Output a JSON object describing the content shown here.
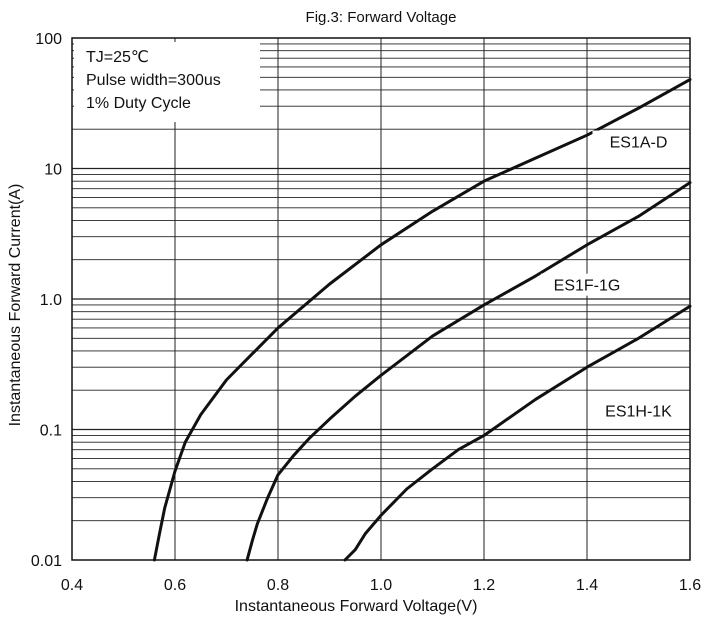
{
  "chart_data": {
    "type": "line",
    "title": "Fig.3: Forward Voltage",
    "xlabel": "Instantaneous Forward Voltage(V)",
    "ylabel": "Instantaneous Forward Current(A)",
    "x_scale": "linear",
    "y_scale": "log",
    "xlim": [
      0.4,
      1.6
    ],
    "ylim": [
      0.01,
      100
    ],
    "grid": true,
    "x_ticks": [
      0.4,
      0.6,
      0.8,
      1.0,
      1.2,
      1.4,
      1.6
    ],
    "x_tick_labels": [
      "0.4",
      "0.6",
      "0.8",
      "1.0",
      "1.2",
      "1.4",
      "1.6"
    ],
    "y_ticks": [
      0.01,
      0.1,
      1.0,
      10,
      100
    ],
    "y_tick_labels": [
      "0.01",
      "0.1",
      "1.0",
      "10",
      "100"
    ],
    "legend_placement": "top-left",
    "conditions": [
      "TJ=25℃",
      "Pulse width=300us",
      "1% Duty Cycle"
    ],
    "series": [
      {
        "name": "ES1A-D",
        "x": [
          0.56,
          0.57,
          0.58,
          0.6,
          0.62,
          0.65,
          0.7,
          0.75,
          0.8,
          0.9,
          1.0,
          1.1,
          1.2,
          1.3,
          1.4,
          1.5,
          1.6
        ],
        "y": [
          0.01,
          0.016,
          0.025,
          0.048,
          0.08,
          0.13,
          0.24,
          0.38,
          0.6,
          1.3,
          2.6,
          4.7,
          8.0,
          12,
          18,
          29,
          48
        ]
      },
      {
        "name": "ES1F-1G",
        "x": [
          0.74,
          0.75,
          0.76,
          0.78,
          0.8,
          0.83,
          0.86,
          0.9,
          0.95,
          1.0,
          1.1,
          1.2,
          1.3,
          1.4,
          1.5,
          1.6
        ],
        "y": [
          0.01,
          0.014,
          0.019,
          0.03,
          0.045,
          0.063,
          0.085,
          0.12,
          0.18,
          0.26,
          0.52,
          0.9,
          1.5,
          2.6,
          4.3,
          7.8
        ]
      },
      {
        "name": "ES1H-1K",
        "x": [
          0.93,
          0.95,
          0.97,
          1.0,
          1.05,
          1.1,
          1.15,
          1.2,
          1.3,
          1.4,
          1.5,
          1.6
        ],
        "y": [
          0.01,
          0.012,
          0.016,
          0.022,
          0.035,
          0.05,
          0.07,
          0.09,
          0.17,
          0.3,
          0.5,
          0.88
        ]
      }
    ],
    "series_label_positions": [
      {
        "name": "ES1A-D",
        "x": 1.5,
        "y": 15
      },
      {
        "name": "ES1F-1G",
        "x": 1.4,
        "y": 1.2
      },
      {
        "name": "ES1H-1K",
        "x": 1.5,
        "y": 0.13
      }
    ]
  }
}
